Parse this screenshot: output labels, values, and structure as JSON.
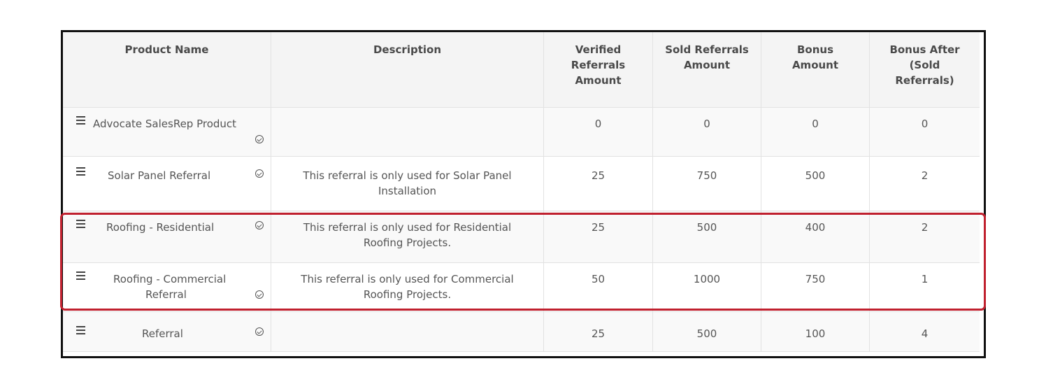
{
  "table": {
    "headers": {
      "product_name": "Product Name",
      "description": "Description",
      "verified_line1": "Verified",
      "verified_line2": "Referrals",
      "verified_line3": "Amount",
      "sold_line1": "Sold Referrals",
      "sold_line2": "Amount",
      "bonus_line1": "Bonus",
      "bonus_line2": "Amount",
      "bonus_after_line1": "Bonus After",
      "bonus_after_line2": "(Sold",
      "bonus_after_line3": "Referrals)"
    },
    "rows": [
      {
        "name_line1": "Advocate SalesRep Product",
        "name_line2": "",
        "desc_line1": "",
        "desc_line2": "",
        "verified": "0",
        "sold": "0",
        "bonus": "0",
        "bonus_after": "0"
      },
      {
        "name_line1": "Solar Panel Referral",
        "name_line2": "",
        "desc_line1": "This referral is only used for Solar Panel",
        "desc_line2": "Installation",
        "verified": "25",
        "sold": "750",
        "bonus": "500",
        "bonus_after": "2"
      },
      {
        "name_line1": "Roofing - Residential",
        "name_line2": "",
        "desc_line1": "This referral is only used for Residential",
        "desc_line2": "Roofing Projects.",
        "verified": "25",
        "sold": "500",
        "bonus": "400",
        "bonus_after": "2"
      },
      {
        "name_line1": "Roofing - Commercial",
        "name_line2": "Referral",
        "desc_line1": "This referral is only used for Commercial",
        "desc_line2": "Roofing Projects.",
        "verified": "50",
        "sold": "1000",
        "bonus": "750",
        "bonus_after": "1"
      },
      {
        "name_line1": "Referral",
        "name_line2": "",
        "desc_line1": "",
        "desc_line2": "",
        "verified": "25",
        "sold": "500",
        "bonus": "100",
        "bonus_after": "4"
      }
    ]
  },
  "colors": {
    "highlight_border": "#c0202e",
    "frame_border": "#111111",
    "header_background": "#f4f4f4"
  },
  "icons": {
    "drag": "drag-handle-icon",
    "status": "check-circle-icon"
  }
}
